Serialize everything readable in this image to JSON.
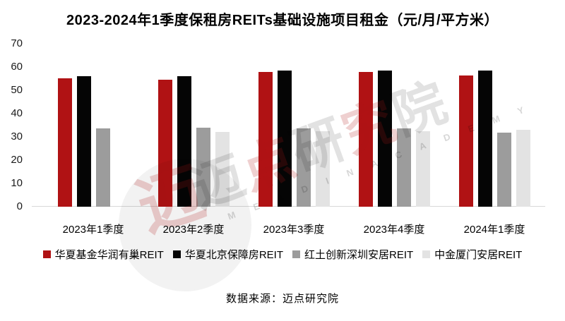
{
  "title": "2023-2024年1季度保租房REITs基础设施项目租金（元/月/平方米）",
  "source": "数据来源：迈点研究院",
  "watermark": {
    "chars": [
      {
        "ch": "迈",
        "tone": "gray"
      },
      {
        "ch": "点",
        "tone": "red"
      },
      {
        "ch": "研",
        "tone": "gray"
      },
      {
        "ch": "究",
        "tone": "red"
      },
      {
        "ch": "院",
        "tone": "gray"
      }
    ],
    "letters": "M E A D I N  A C A D E M Y",
    "logo_char": "迈"
  },
  "chart_data": {
    "type": "bar",
    "categories": [
      "2023年1季度",
      "2023年2季度",
      "2023年3季度",
      "2023年4季度",
      "2024年1季度"
    ],
    "series": [
      {
        "name": "华夏基金华润有巢REIT",
        "color": "#B01214",
        "values": [
          55.3,
          54.7,
          57.9,
          58.0,
          56.4
        ]
      },
      {
        "name": "华夏北京保障房REIT",
        "color": "#050505",
        "values": [
          56.0,
          56.0,
          58.6,
          58.6,
          58.5
        ]
      },
      {
        "name": "红土创新深圳安居REIT",
        "color": "#9C9C9C",
        "values": [
          33.5,
          33.8,
          33.5,
          33.5,
          31.9
        ]
      },
      {
        "name": "中金厦门安居REIT",
        "color": "#E3E3E3",
        "values": [
          null,
          32.1,
          32.4,
          32.3,
          33.1
        ]
      }
    ],
    "ylabel": "",
    "xlabel": "",
    "ylim": [
      0,
      70
    ],
    "y_ticks": [
      0,
      10,
      20,
      30,
      40,
      50,
      60,
      70
    ],
    "grid": false,
    "legend_position": "bottom"
  }
}
